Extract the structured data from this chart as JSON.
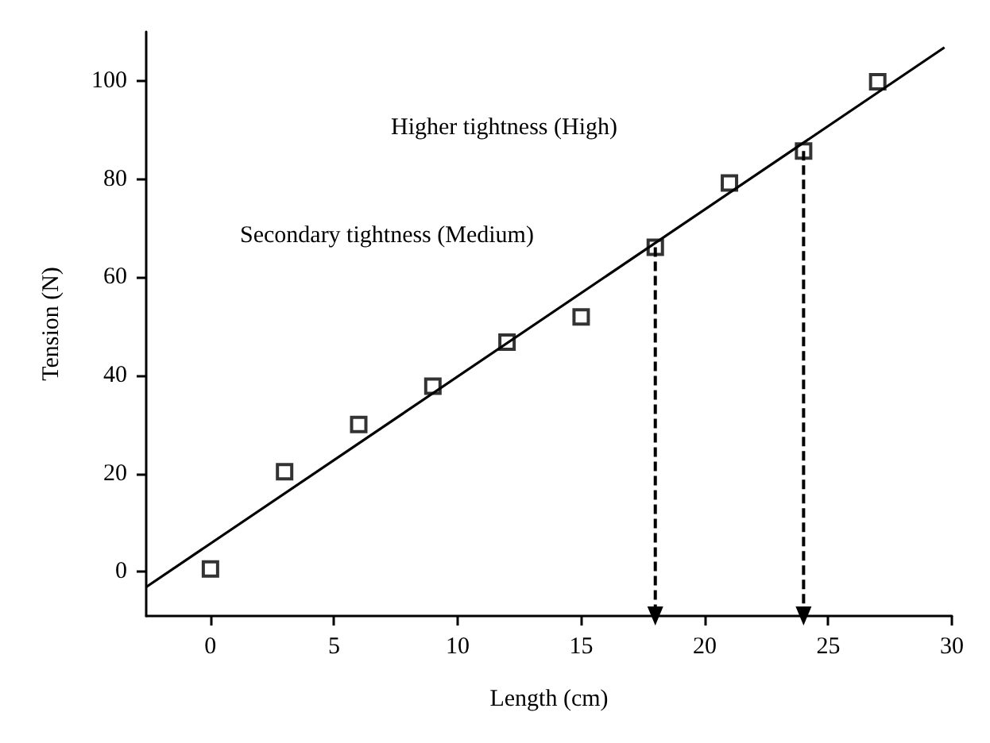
{
  "chart_data": {
    "type": "scatter",
    "xlabel": "Length (cm)",
    "ylabel": "Tension (N)",
    "xlim": [
      -2.6,
      30
    ],
    "xticks": [
      0,
      5,
      10,
      15,
      20,
      25,
      30
    ],
    "ylim": [
      -9,
      110
    ],
    "yticks": [
      0,
      20,
      40,
      60,
      80,
      100
    ],
    "grid": false,
    "marker": "square",
    "series": [
      {
        "color": "#000000",
        "x": [
          0,
          3,
          6,
          9,
          12,
          15,
          18,
          21,
          24,
          27
        ],
        "values": [
          0.6,
          20.4,
          30,
          37.8,
          46.8,
          51.9,
          66.1,
          79.2,
          85.7,
          99.8
        ]
      },
      {
        "type": "line",
        "color": "#000000",
        "marker": "none",
        "line_style": "solid",
        "x": [
          -2.6,
          29.7
        ],
        "values": [
          -3.1,
          106.8
        ]
      },
      {
        "type": "line",
        "color": "#000000",
        "marker": "triangle",
        "line_style": "dashed",
        "x": [
          18,
          18
        ],
        "values": [
          66.1,
          -9
        ]
      },
      {
        "type": "line",
        "color": "#000000",
        "marker": "triangle",
        "line_style": "dashed",
        "x": [
          24,
          24
        ],
        "values": [
          85.7,
          -9
        ]
      }
    ],
    "annotations": [
      "Higher tightness (High)",
      "Secondary tightness (Medium)"
    ]
  }
}
